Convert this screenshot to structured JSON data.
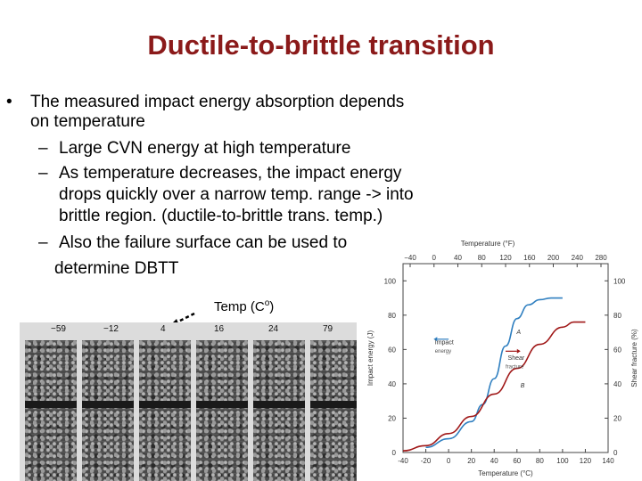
{
  "slide": {
    "title": "Ductile-to-brittle transition",
    "bullets": [
      {
        "marker": "•",
        "lines": [
          "The measured impact energy absorption depends",
          "on temperature"
        ]
      },
      {
        "marker": "–",
        "lines": [
          "Large CVN energy at high temperature"
        ]
      },
      {
        "marker": "–",
        "lines": [
          "As temperature decreases, the impact energy",
          "drops quickly over a narrow temp. range -> into",
          "brittle region. (ductile-to-brittle trans. temp.)"
        ]
      },
      {
        "marker": "–",
        "lines": [
          "Also the failure surface can be used to",
          "determine DBTT"
        ]
      }
    ],
    "temp_label": "Temp (C",
    "temp_label_sup": "o",
    "temp_label_end": ")"
  },
  "photo": {
    "temperatures": [
      "−59",
      "−12",
      "4",
      "16",
      "24",
      "79"
    ]
  },
  "chart_data": {
    "type": "line",
    "xlabel": "Temperature (°C)",
    "x_ticks": [
      -40,
      -20,
      0,
      20,
      40,
      60,
      80,
      100,
      120,
      140
    ],
    "xlim": [
      -40,
      140
    ],
    "top_axis_label": "Temperature (°F)",
    "top_ticks": [
      "−40",
      "0",
      "40",
      "80",
      "120",
      "160",
      "200",
      "240",
      "280"
    ],
    "ylabel": "Impact energy (J)",
    "y_ticks": [
      0,
      20,
      40,
      60,
      80,
      100
    ],
    "ylim": [
      0,
      110
    ],
    "y2label": "Shear fracture (%)",
    "y2_ticks": [
      0,
      20,
      40,
      60,
      80,
      100
    ],
    "y2lim": [
      0,
      110
    ],
    "series": [
      {
        "name": "Impact energy",
        "label": "A",
        "color": "#2f7fc0",
        "x": [
          -20,
          0,
          20,
          30,
          40,
          50,
          60,
          70,
          80,
          90,
          100
        ],
        "y": [
          3,
          8,
          18,
          28,
          43,
          62,
          78,
          86,
          89,
          90,
          90
        ]
      },
      {
        "name": "Shear fracture",
        "label": "B",
        "color": "#a01818",
        "x": [
          -40,
          -20,
          0,
          20,
          40,
          60,
          80,
          100,
          110,
          120
        ],
        "y": [
          1,
          4,
          11,
          21,
          34,
          49,
          63,
          73,
          76,
          76
        ]
      }
    ],
    "legend_labels": {
      "impact": "Impact",
      "impact_sub": "energy",
      "shear": "Shear",
      "shear_sub": "fracture"
    },
    "grid": false
  }
}
